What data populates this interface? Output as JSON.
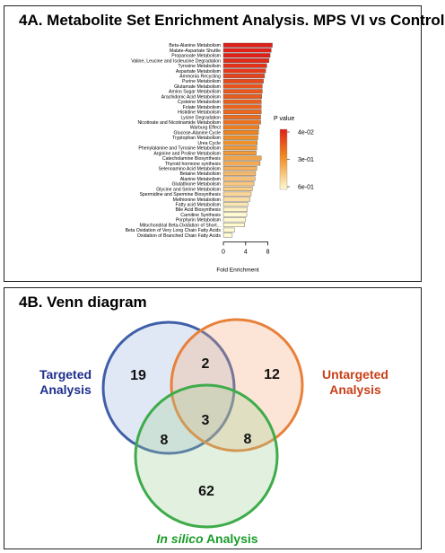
{
  "panel_a": {
    "title": "4A. Metabolite Set Enrichment Analysis. MPS VI vs Control"
  },
  "panel_b": {
    "title": "4B. Venn diagram"
  },
  "colors": {
    "targeted": "#3f5fa8",
    "untargeted": "#e8803a",
    "insilico": "#3fab4a",
    "targeted_label": "#1f2f8c",
    "untargeted_label": "#c8401a",
    "insilico_label": "#1a9c2a",
    "pvalue_low": "#e02018",
    "pvalue_mid": "#f08a20",
    "pvalue_high": "#fffad0"
  },
  "chart_data": [
    {
      "type": "bar",
      "orientation": "horizontal",
      "title": "4A. Metabolite Set Enrichment Analysis. MPS VI vs Control",
      "xlabel": "Fold Enrichment",
      "ylabel": "",
      "xlim": [
        0,
        9
      ],
      "xticks": [
        0,
        4,
        8
      ],
      "xtick_labels": [
        "0",
        "4",
        "8"
      ],
      "grid": false,
      "legend": {
        "title": "P value",
        "placement": "right",
        "ticks": [
          "4e-02",
          "3e-01",
          "6e-01"
        ],
        "tick_values": [
          0.04,
          0.3,
          0.6
        ]
      },
      "categories": [
        "Beta-Alanine Metabolism",
        "Malate-Aspartate Shuttle",
        "Propanoate Metabolism",
        "Valine, Leucine and Isoleucine Degradation",
        "Tyrosine Metabolism",
        "Aspartate Metabolism",
        "Ammonia Recycling",
        "Purine Metabolism",
        "Glutamate Metabolism",
        "Amino Sugar Metabolism",
        "Arachidonic Acid Metabolism",
        "Cysteine Metabolism",
        "Folate Metabolism",
        "Histidine Metabolism",
        "Lysine Degradation",
        "Nicotinate and Nicotinamide Metabolism",
        "Warburg Effect",
        "Glucose-Alanine Cycle",
        "Tryptophan Metabolism",
        "Urea Cycle",
        "Phenylalanine and Tyrosine Metabolism",
        "Arginine and Proline Metabolism",
        "Catecholamine Biosynthesis",
        "Thyroid hormone synthesis",
        "Selenoamino Acid Metabolism",
        "Betaine Metabolism",
        "Alanine Metabolism",
        "Glutathione Metabolism",
        "Glycine and Serine Metabolism",
        "Spermidine and Spermine Biosynthesis",
        "Methionine Metabolism",
        "Fatty acid Metabolism",
        "Bile Acid Biosynthesis",
        "Carnitine Synthesis",
        "Porphyrin Metabolism",
        "Mitochondrial Beta-Oxidation of Short...",
        "Beta Oxidation of Very Long Chain Fatty Acids",
        "Oxidation of Branched Chain Fatty Acids"
      ],
      "values": [
        8.8,
        8.6,
        8.4,
        8.2,
        7.8,
        7.6,
        7.4,
        7.2,
        7.0,
        7.0,
        6.9,
        6.8,
        6.8,
        6.8,
        6.7,
        6.7,
        6.4,
        6.3,
        6.2,
        6.1,
        6.0,
        5.9,
        6.8,
        6.6,
        6.0,
        5.8,
        5.7,
        5.5,
        5.2,
        5.0,
        4.8,
        4.4,
        4.3,
        4.2,
        4.0,
        3.8,
        2.0,
        1.6
      ],
      "pvalues": [
        0.02,
        0.03,
        0.04,
        0.06,
        0.08,
        0.1,
        0.12,
        0.14,
        0.16,
        0.17,
        0.18,
        0.19,
        0.2,
        0.21,
        0.22,
        0.23,
        0.26,
        0.28,
        0.3,
        0.31,
        0.33,
        0.34,
        0.36,
        0.38,
        0.4,
        0.42,
        0.44,
        0.46,
        0.48,
        0.5,
        0.52,
        0.55,
        0.58,
        0.6,
        0.62,
        0.66,
        0.7,
        0.74
      ]
    },
    {
      "type": "venn",
      "title": "4B. Venn diagram",
      "sets": [
        {
          "name": "Targeted Analysis",
          "label_lines": [
            "Targeted",
            "Analysis"
          ]
        },
        {
          "name": "Untargeted Analysis",
          "label_lines": [
            "Untargeted",
            "Analysis"
          ]
        },
        {
          "name": "In silico Analysis",
          "label_italic": "In silico",
          "label_rest": " Analysis"
        }
      ],
      "regions": [
        {
          "sets": [
            "Targeted"
          ],
          "value": 19
        },
        {
          "sets": [
            "Untargeted"
          ],
          "value": 12
        },
        {
          "sets": [
            "In silico"
          ],
          "value": 62
        },
        {
          "sets": [
            "Targeted",
            "Untargeted"
          ],
          "value": 2
        },
        {
          "sets": [
            "Targeted",
            "In silico"
          ],
          "value": 8
        },
        {
          "sets": [
            "Untargeted",
            "In silico"
          ],
          "value": 8
        },
        {
          "sets": [
            "Targeted",
            "Untargeted",
            "In silico"
          ],
          "value": 3
        }
      ]
    }
  ]
}
